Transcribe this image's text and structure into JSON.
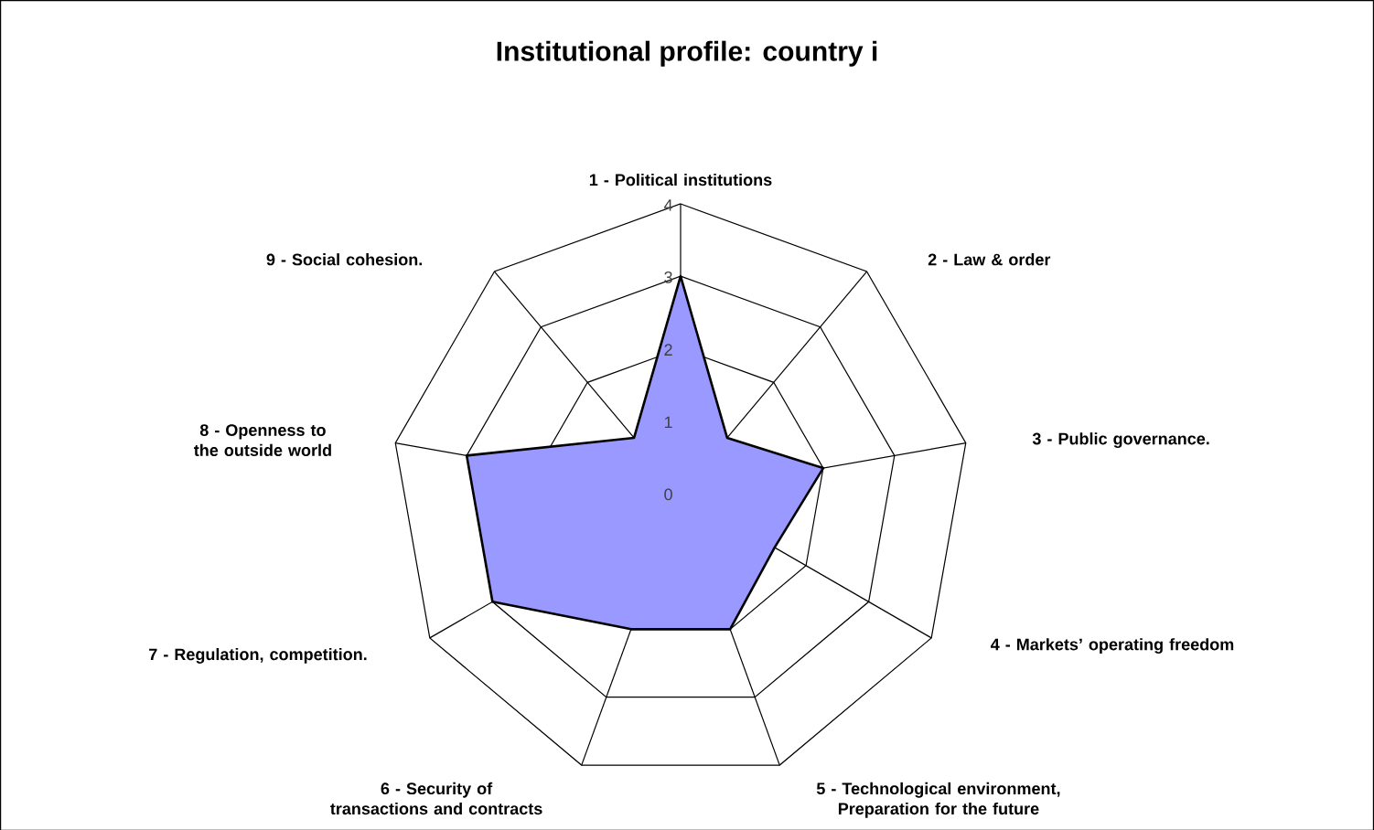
{
  "chart_data": {
    "type": "radar",
    "title": "Institutional profile: country i",
    "categories": [
      "1 - Political institutions",
      "2 - Law & order",
      "3 - Public governance.",
      "4 - Markets’ operating freedom",
      "5 - Technological environment, Preparation for the future",
      "6 - Security of transactions and contracts",
      "7 - Regulation, competition.",
      "8 - Openness to the outside world",
      "9 - Social cohesion."
    ],
    "series": [
      {
        "color": "#9999ff",
        "values": [
          3,
          1,
          2,
          1.5,
          2,
          2,
          3,
          3,
          1
        ]
      }
    ],
    "ylim": [
      0,
      4
    ],
    "yticks": [
      0,
      1,
      2,
      3,
      4
    ],
    "grid": true
  }
}
